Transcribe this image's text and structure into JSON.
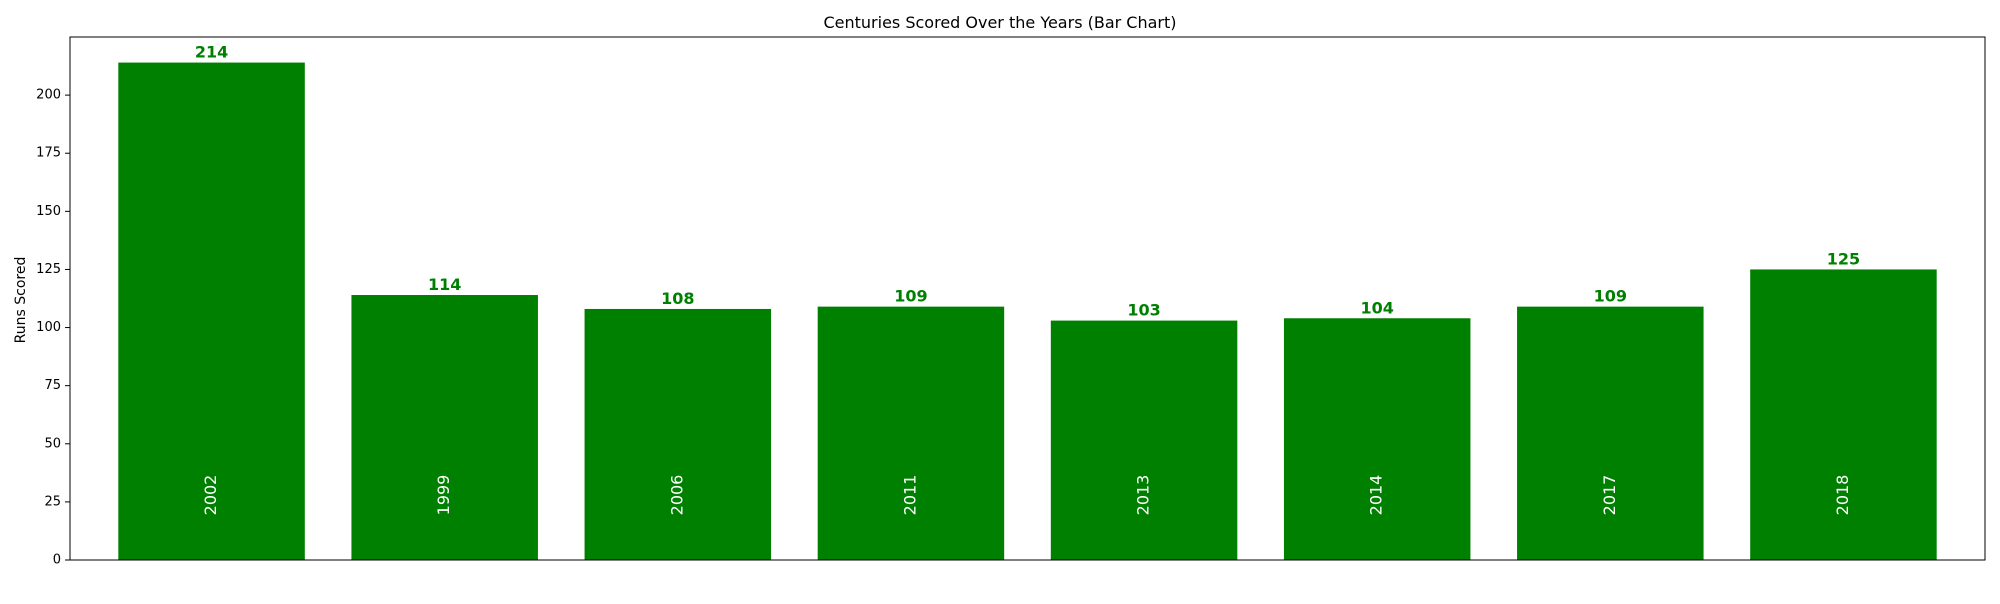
{
  "chart_data": {
    "type": "bar",
    "title": "Centuries Scored Over the Years (Bar Chart)",
    "xlabel": "",
    "ylabel": "Runs Scored",
    "categories": [
      "2002",
      "1999",
      "2006",
      "2011",
      "2013",
      "2014",
      "2017",
      "2018"
    ],
    "values": [
      214,
      114,
      108,
      109,
      103,
      104,
      109,
      125
    ],
    "ylim": [
      0,
      225
    ],
    "yticks": [
      0,
      25,
      50,
      75,
      100,
      125,
      150,
      175,
      200
    ],
    "grid": false,
    "legend": "none",
    "colors": {
      "bar": "#008000",
      "value_label": "#008000",
      "category_label": "#ffffff",
      "axis": "#000000"
    }
  }
}
